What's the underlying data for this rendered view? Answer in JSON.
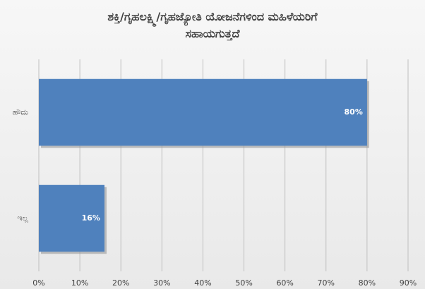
{
  "chart_data": {
    "type": "hbar",
    "title": "ಶಕ್ತಿ/ಗೃಹಲಕ್ಷ್ಮಿ/ಗೃಹಜ್ಯೋತಿ ಯೋಜನೆಗಳಿಂದ ಮಹಿಳೆಯರಿಗೆ ಸಹಾಯಗುತ್ತದೆ",
    "categories": [
      "ಹೌದು",
      "ಇಲ್ಲ"
    ],
    "values": [
      80,
      16
    ],
    "value_labels": [
      "80%",
      "16%"
    ],
    "color": "#4f81bd",
    "xlim": [
      0,
      90
    ],
    "xticks": [
      {
        "value": 0,
        "label": "0%"
      },
      {
        "value": 10,
        "label": "10%"
      },
      {
        "value": 20,
        "label": "20%"
      },
      {
        "value": 30,
        "label": "30%"
      },
      {
        "value": 40,
        "label": "40%"
      },
      {
        "value": 50,
        "label": "50%"
      },
      {
        "value": 60,
        "label": "60%"
      },
      {
        "value": 70,
        "label": "70%"
      },
      {
        "value": 80,
        "label": "80%"
      },
      {
        "value": 90,
        "label": "90%"
      }
    ],
    "grid": true
  }
}
